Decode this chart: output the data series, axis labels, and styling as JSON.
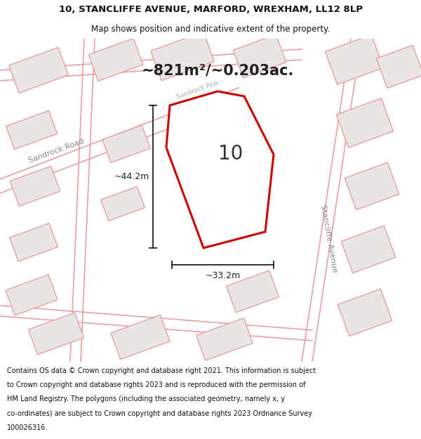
{
  "title_line1": "10, STANCLIFFE AVENUE, MARFORD, WREXHAM, LL12 8LP",
  "title_line2": "Map shows position and indicative extent of the property.",
  "area_text": "~821m²/~0.203ac.",
  "label_10": "10",
  "dim_width": "~33.2m",
  "dim_height": "~44.2m",
  "road_label1": "Sandrock Road",
  "road_label2": "Stancliffe Avenue",
  "footer_lines": [
    "Contains OS data © Crown copyright and database right 2021. This information is subject",
    "to Crown copyright and database rights 2023 and is reproduced with the permission of",
    "HM Land Registry. The polygons (including the associated geometry, namely x, y",
    "co-ordinates) are subject to Crown copyright and database rights 2023 Ordnance Survey",
    "100026316."
  ],
  "bg_color": "#ffffff",
  "map_bg": "#f8f8f8",
  "road_color": "#e8a0a0",
  "road_lw": 1.2,
  "property_color": "#cc0000",
  "property_fill": "#ffffff",
  "building_edge_color": "#e8a0a0",
  "building_fill": "#e8e5e2",
  "title_fontsize": 9.5,
  "subtitle_fontsize": 8.5,
  "area_fontsize": 15,
  "label_fontsize": 20,
  "dim_fontsize": 9,
  "road_label_fontsize": 8,
  "footer_fontsize": 7.0
}
